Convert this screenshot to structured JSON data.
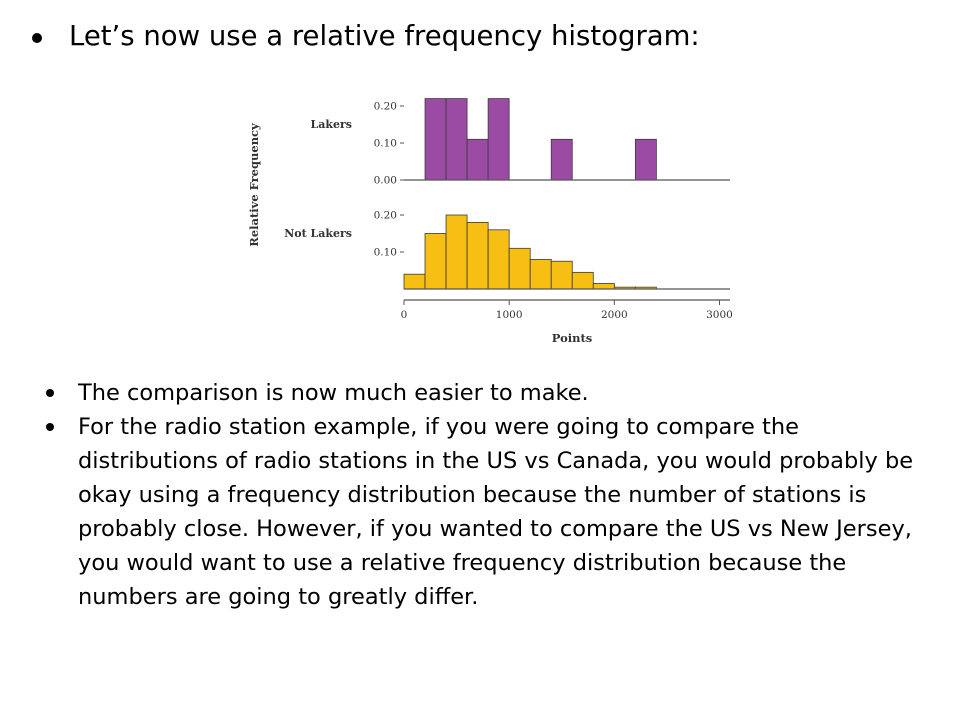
{
  "slide": {
    "title_bullet": "Let’s now use a relative frequency histogram:",
    "body_bullets": [
      "The comparison is now much easier to make.",
      "For the radio station example, if you were going to compare the distributions of radio stations in the US vs Canada, you would probably be okay using a frequency distribution because the number of stations is probably close.  However, if you wanted to compare the US vs New Jersey, you would want to use a relative frequency distribution because the numbers are going to greatly differ."
    ]
  },
  "chart_data": {
    "type": "bar",
    "xlabel": "Points",
    "ylabel": "Relative Frequency",
    "x_ticks": [
      0,
      1000,
      2000,
      3000
    ],
    "xlim": [
      0,
      3100
    ],
    "bin_width": 200,
    "series": [
      {
        "name": "Lakers",
        "color": "#9b4ba3",
        "bins": [
          {
            "x0": 200,
            "x1": 400,
            "value": 0.22
          },
          {
            "x0": 400,
            "x1": 600,
            "value": 0.22
          },
          {
            "x0": 600,
            "x1": 800,
            "value": 0.11
          },
          {
            "x0": 800,
            "x1": 1000,
            "value": 0.22
          },
          {
            "x0": 1400,
            "x1": 1600,
            "value": 0.11
          },
          {
            "x0": 2200,
            "x1": 2400,
            "value": 0.11
          }
        ],
        "y_ticks": [
          0.0,
          0.1,
          0.2
        ],
        "y_tick_labels": [
          "0.00",
          "0.10",
          "0.20"
        ],
        "ylim": [
          0,
          0.25
        ]
      },
      {
        "name": "Not Lakers",
        "color": "#f7bf13",
        "bins": [
          {
            "x0": 0,
            "x1": 200,
            "value": 0.04
          },
          {
            "x0": 200,
            "x1": 400,
            "value": 0.15
          },
          {
            "x0": 400,
            "x1": 600,
            "value": 0.2
          },
          {
            "x0": 600,
            "x1": 800,
            "value": 0.18
          },
          {
            "x0": 800,
            "x1": 1000,
            "value": 0.16
          },
          {
            "x0": 1000,
            "x1": 1200,
            "value": 0.11
          },
          {
            "x0": 1200,
            "x1": 1400,
            "value": 0.08
          },
          {
            "x0": 1400,
            "x1": 1600,
            "value": 0.075
          },
          {
            "x0": 1600,
            "x1": 1800,
            "value": 0.045
          },
          {
            "x0": 1800,
            "x1": 2000,
            "value": 0.015
          },
          {
            "x0": 2000,
            "x1": 2200,
            "value": 0.005
          },
          {
            "x0": 2200,
            "x1": 2400,
            "value": 0.005
          }
        ],
        "y_ticks": [
          0.1,
          0.2
        ],
        "y_tick_labels": [
          "0.10",
          "0.20"
        ],
        "ylim": [
          0,
          0.25
        ]
      }
    ],
    "grid": false
  }
}
